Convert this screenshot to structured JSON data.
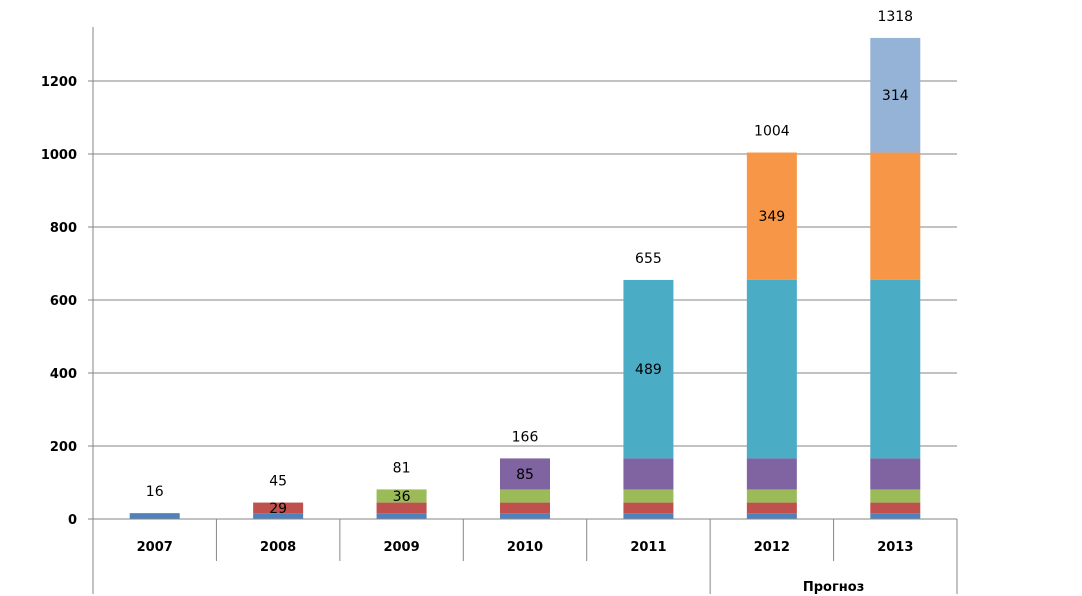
{
  "chart_data": {
    "type": "bar",
    "stacked": true,
    "title": "",
    "xlabel": "",
    "ylabel": "",
    "ylim": [
      0,
      1350
    ],
    "yticks": [
      0,
      200,
      400,
      600,
      800,
      1000,
      1200
    ],
    "grid": true,
    "legend": "none",
    "categories": [
      "2007",
      "2008",
      "2009",
      "2010",
      "2011",
      "2012",
      "2013"
    ],
    "group_label": "Прогноз",
    "group_categories": [
      "2012",
      "2013"
    ],
    "totals": [
      16,
      45,
      81,
      166,
      655,
      1004,
      1318
    ],
    "series": [
      {
        "color": "#4f81bd",
        "values": [
          16,
          16,
          16,
          16,
          16,
          16,
          16
        ],
        "labels": [
          "",
          "",
          "",
          "",
          "",
          "",
          ""
        ]
      },
      {
        "color": "#c0504d",
        "values": [
          0,
          29,
          29,
          29,
          29,
          29,
          29
        ],
        "labels": [
          "",
          "29",
          "",
          "",
          "",
          "",
          ""
        ]
      },
      {
        "color": "#9bbb59",
        "values": [
          0,
          0,
          36,
          36,
          36,
          36,
          36
        ],
        "labels": [
          "",
          "",
          "36",
          "",
          "",
          "",
          ""
        ]
      },
      {
        "color": "#8064a2",
        "values": [
          0,
          0,
          0,
          85,
          85,
          85,
          85
        ],
        "labels": [
          "",
          "",
          "",
          "85",
          "",
          "",
          ""
        ]
      },
      {
        "color": "#4bacc6",
        "values": [
          0,
          0,
          0,
          0,
          489,
          489,
          489
        ],
        "labels": [
          "",
          "",
          "",
          "",
          "489",
          "",
          ""
        ]
      },
      {
        "color": "#f79646",
        "values": [
          0,
          0,
          0,
          0,
          0,
          349,
          349
        ],
        "labels": [
          "",
          "",
          "",
          "",
          "",
          "349",
          ""
        ]
      },
      {
        "color": "#95b3d7",
        "values": [
          0,
          0,
          0,
          0,
          0,
          0,
          314
        ],
        "labels": [
          "",
          "",
          "",
          "",
          "",
          "",
          "314"
        ]
      }
    ]
  }
}
